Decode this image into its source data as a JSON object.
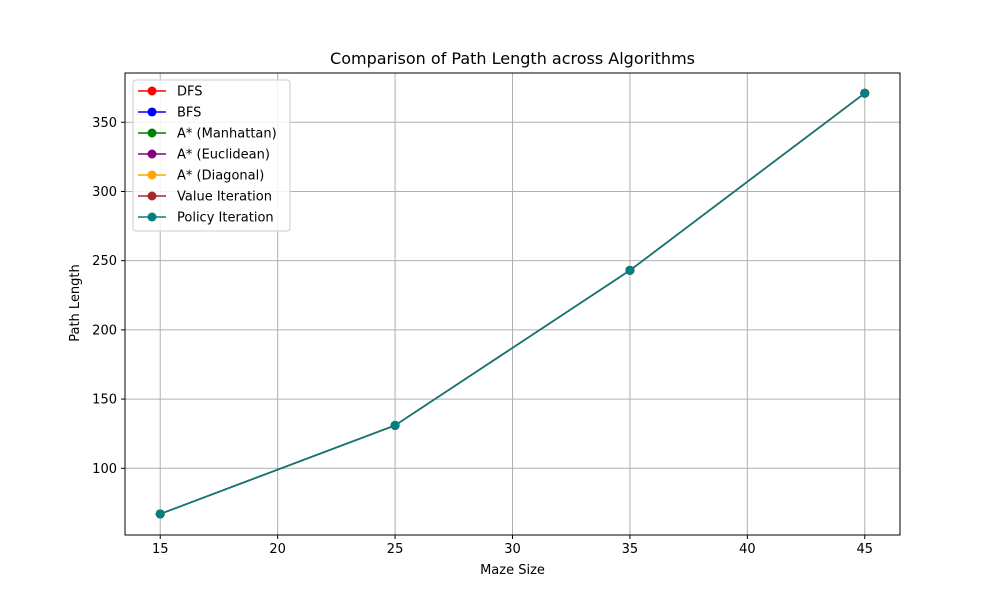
{
  "chart_data": {
    "type": "line",
    "title": "Comparison of Path Length across Algorithms",
    "xlabel": "Maze Size",
    "ylabel": "Path Length",
    "x": [
      15,
      25,
      35,
      45
    ],
    "xlim": [
      13.5,
      46.5
    ],
    "ylim": [
      51.8,
      385.6
    ],
    "xticks": [
      15,
      20,
      25,
      30,
      35,
      40,
      45
    ],
    "yticks": [
      100,
      150,
      200,
      250,
      300,
      350
    ],
    "grid": true,
    "legend_position": "top-left",
    "series": [
      {
        "name": "DFS",
        "color": "#ff0000",
        "values": [
          67,
          131,
          243,
          371
        ]
      },
      {
        "name": "BFS",
        "color": "#0000ff",
        "values": [
          67,
          131,
          243,
          371
        ]
      },
      {
        "name": "A* (Manhattan)",
        "color": "#008000",
        "values": [
          67,
          131,
          243,
          371
        ]
      },
      {
        "name": "A* (Euclidean)",
        "color": "#800080",
        "values": [
          67,
          131,
          243,
          371
        ]
      },
      {
        "name": "A* (Diagonal)",
        "color": "#ffa500",
        "values": [
          67,
          131,
          243,
          371
        ]
      },
      {
        "name": "Value Iteration",
        "color": "#a52a2a",
        "values": [
          67,
          131,
          243,
          371
        ]
      },
      {
        "name": "Policy Iteration",
        "color": "#008080",
        "values": [
          67,
          131,
          243,
          371
        ]
      }
    ]
  }
}
